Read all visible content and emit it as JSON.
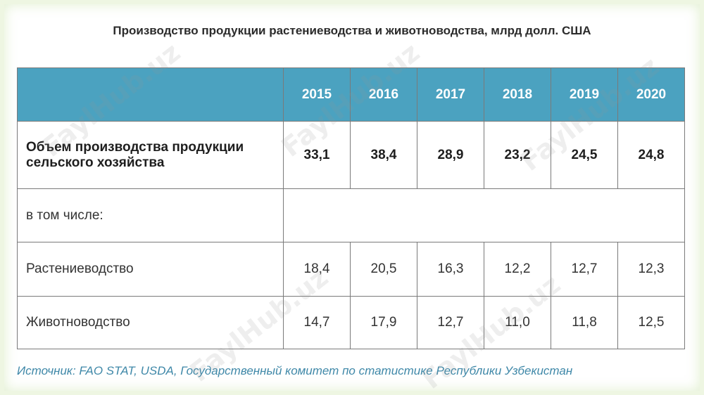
{
  "title": "Производство продукции растениеводства и животноводства, млрд долл. США",
  "table": {
    "corner": "",
    "years": [
      "2015",
      "2016",
      "2017",
      "2018",
      "2019",
      "2020"
    ],
    "rows": [
      {
        "label": "Объем производства продукции сельского хозяйства",
        "values": [
          "33,1",
          "38,4",
          "28,9",
          "23,2",
          "24,5",
          "24,8"
        ]
      },
      {
        "label": "в том числе:",
        "values": []
      },
      {
        "label": "Растениеводство",
        "values": [
          "18,4",
          "20,5",
          "16,3",
          "12,2",
          "12,7",
          "12,3"
        ]
      },
      {
        "label": "Животноводство",
        "values": [
          "14,7",
          "17,9",
          "12,7",
          "11,0",
          "11,8",
          "12,5"
        ]
      }
    ]
  },
  "source": "Источник: FAO STAT, USDA, Государственный комитет по статистике Республики Узбекистан",
  "watermark": "FaylHub.uz",
  "colors": {
    "header_bg": "#4ba2c0",
    "source_text": "#3f88a8"
  }
}
